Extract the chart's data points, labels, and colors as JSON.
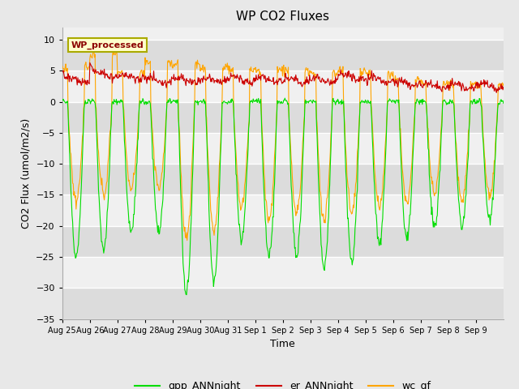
{
  "title": "WP CO2 Fluxes",
  "xlabel": "Time",
  "ylabel": "CO2 Flux (umol/m2/s)",
  "ylim": [
    -35,
    12
  ],
  "yticks": [
    -35,
    -30,
    -25,
    -20,
    -15,
    -10,
    -5,
    0,
    5,
    10
  ],
  "n_days": 16,
  "x_labels": [
    "Aug 25",
    "Aug 26",
    "Aug 27",
    "Aug 28",
    "Aug 29",
    "Aug 30",
    "Aug 31",
    "Sep 1",
    "Sep 2",
    "Sep 3",
    "Sep 4",
    "Sep 5",
    "Sep 6",
    "Sep 7",
    "Sep 8",
    "Sep 9"
  ],
  "annotation_text": "WP_processed",
  "annotation_color": "#8B0000",
  "annotation_bg": "#FFFFCC",
  "annotation_edge": "#AAAA00",
  "line_gpp_color": "#00DD00",
  "line_er_color": "#CC0000",
  "line_wc_color": "#FFA500",
  "bg_color": "#E8E8E8",
  "plot_bg_light": "#F0F0F0",
  "plot_bg_dark": "#DCDCDC",
  "grid_color": "#FFFFFF",
  "legend_labels": [
    "gpp_ANNnight",
    "er_ANNnight",
    "wc_gf"
  ],
  "legend_colors": [
    "#00DD00",
    "#CC0000",
    "#FFA500"
  ],
  "gpp_depths": [
    -25,
    -24,
    -21,
    -21,
    -31,
    -29,
    -22,
    -25,
    -25,
    -27,
    -26,
    -23,
    -22,
    -20,
    -20,
    -19
  ],
  "wc_depths": [
    -16,
    -15,
    -14,
    -14,
    -22,
    -21,
    -17,
    -19,
    -18,
    -19,
    -18,
    -17,
    -16,
    -15,
    -16,
    -15
  ],
  "er_base": [
    3.5,
    4.5,
    4.0,
    3.5,
    3.5,
    3.5,
    3.5,
    3.5,
    3.5,
    3.5,
    4.0,
    3.5,
    3.0,
    2.5,
    2.5,
    2.5
  ],
  "wc_night": [
    5.5,
    7.5,
    4.5,
    6.5,
    6.0,
    5.5,
    5.0,
    5.0,
    5.0,
    4.5,
    5.0,
    4.5,
    3.5,
    3.0,
    3.0,
    2.5
  ]
}
